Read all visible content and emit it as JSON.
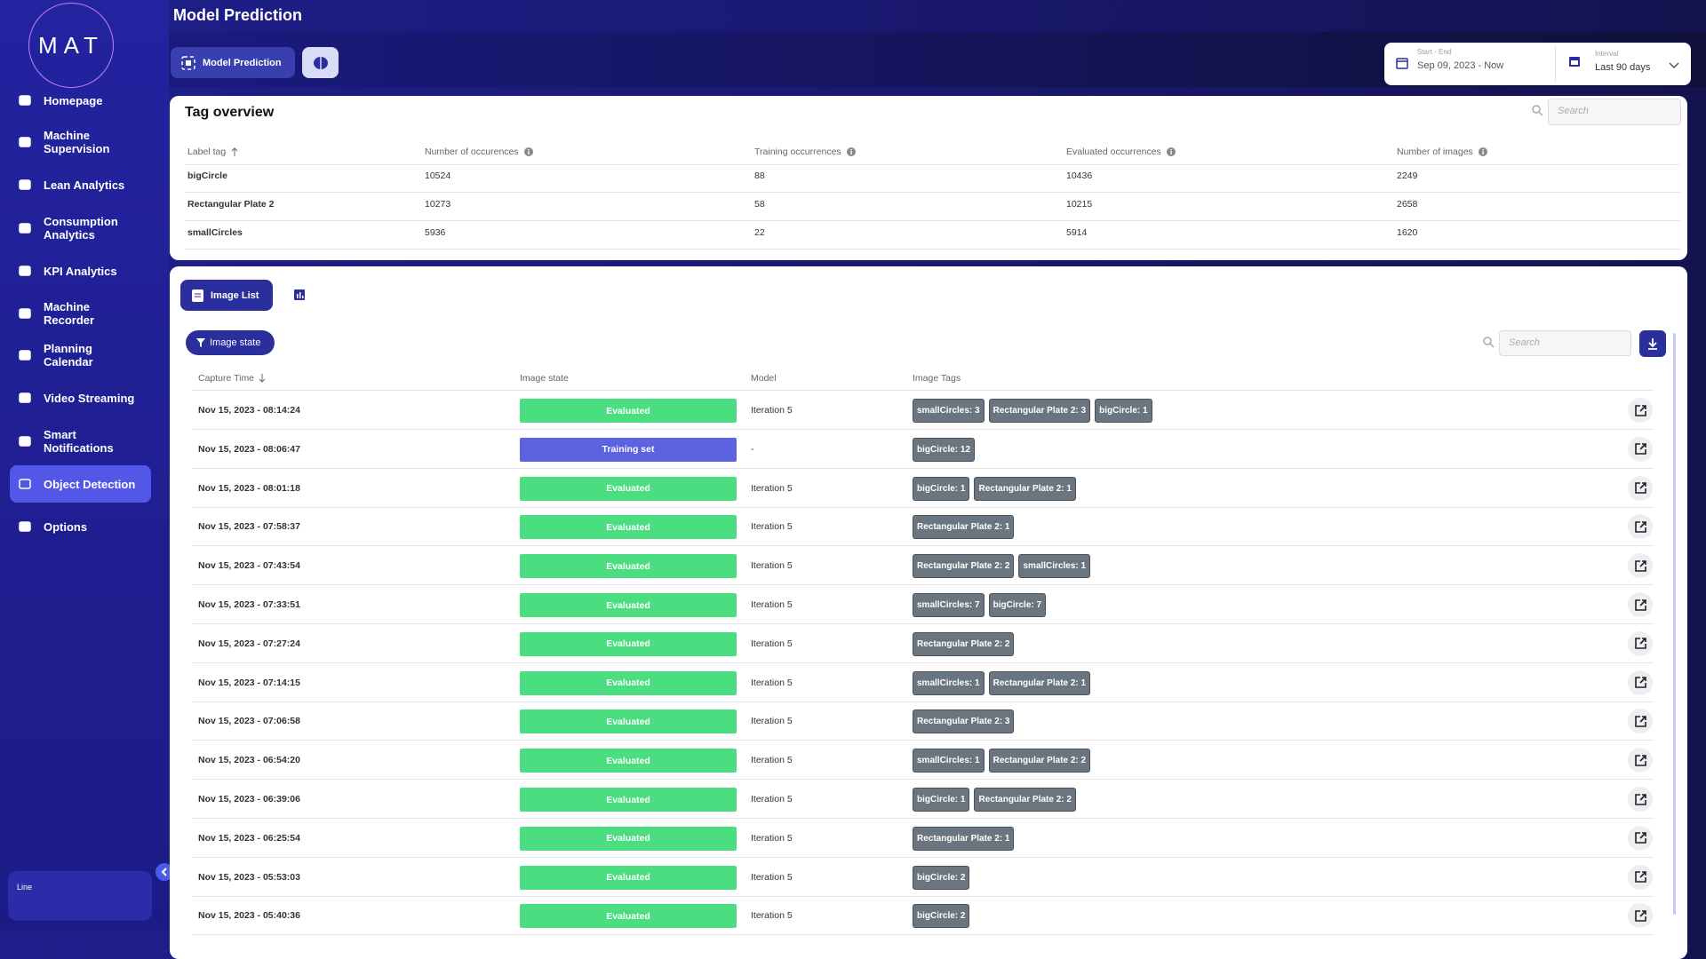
{
  "sidebar": {
    "logo": "MAT",
    "nav": [
      {
        "label": "Homepage"
      },
      {
        "label": "Machine Supervision"
      },
      {
        "label": "Lean Analytics"
      },
      {
        "label": "Consumption Analytics"
      },
      {
        "label": "KPI Analytics"
      },
      {
        "label": "Machine Recorder"
      },
      {
        "label": "Planning Calendar"
      },
      {
        "label": "Video Streaming"
      },
      {
        "label": "Smart Notifications"
      },
      {
        "label": "Object Detection",
        "active": true
      },
      {
        "label": "Options"
      }
    ],
    "footer": "Line"
  },
  "header": {
    "title": "Model Prediction",
    "tab": "Model Prediction",
    "date_range": {
      "label": "Start - End",
      "value": "Sep 09, 2023 - Now"
    },
    "interval": {
      "label": "Interval",
      "value": "Last 90 days"
    }
  },
  "tag_overview": {
    "title": "Tag overview",
    "search_placeholder": "Search",
    "columns": [
      "Label tag",
      "Number of occurences",
      "Training occurrences",
      "Evaluated occurrences",
      "Number of images"
    ],
    "rows": [
      [
        "bigCircle",
        10524,
        88,
        10436,
        2249
      ],
      [
        "Rectangular Plate 2",
        10273,
        58,
        10215,
        2658
      ],
      [
        "smallCircles",
        5936,
        22,
        5914,
        1620
      ]
    ]
  },
  "image_list": {
    "tab": "Image List",
    "filter": "Image state",
    "search_placeholder": "Search",
    "columns": [
      "Capture Time",
      "Image state",
      "Model",
      "Image Tags"
    ],
    "rows": [
      {
        "time": "Nov 15, 2023 - 08:14:24",
        "state": "Evaluated",
        "state_color": "#4ade80",
        "model": "Iteration 5",
        "tags": [
          "smallCircles: 3",
          "Rectangular Plate 2: 3",
          "bigCircle: 1"
        ]
      },
      {
        "time": "Nov 15, 2023 - 08:06:47",
        "state": "Training set",
        "state_color": "#5b63e0",
        "model": "-",
        "tags": [
          "bigCircle: 12"
        ]
      },
      {
        "time": "Nov 15, 2023 - 08:01:18",
        "state": "Evaluated",
        "state_color": "#4ade80",
        "model": "Iteration 5",
        "tags": [
          "bigCircle: 1",
          "Rectangular Plate 2: 1"
        ]
      },
      {
        "time": "Nov 15, 2023 - 07:58:37",
        "state": "Evaluated",
        "state_color": "#4ade80",
        "model": "Iteration 5",
        "tags": [
          "Rectangular Plate 2: 1"
        ]
      },
      {
        "time": "Nov 15, 2023 - 07:43:54",
        "state": "Evaluated",
        "state_color": "#4ade80",
        "model": "Iteration 5",
        "tags": [
          "Rectangular Plate 2: 2",
          "smallCircles: 1"
        ]
      },
      {
        "time": "Nov 15, 2023 - 07:33:51",
        "state": "Evaluated",
        "state_color": "#4ade80",
        "model": "Iteration 5",
        "tags": [
          "smallCircles: 7",
          "bigCircle: 7"
        ]
      },
      {
        "time": "Nov 15, 2023 - 07:27:24",
        "state": "Evaluated",
        "state_color": "#4ade80",
        "model": "Iteration 5",
        "tags": [
          "Rectangular Plate 2: 2"
        ]
      },
      {
        "time": "Nov 15, 2023 - 07:14:15",
        "state": "Evaluated",
        "state_color": "#4ade80",
        "model": "Iteration 5",
        "tags": [
          "smallCircles: 1",
          "Rectangular Plate 2: 1"
        ]
      },
      {
        "time": "Nov 15, 2023 - 07:06:58",
        "state": "Evaluated",
        "state_color": "#4ade80",
        "model": "Iteration 5",
        "tags": [
          "Rectangular Plate 2: 3"
        ]
      },
      {
        "time": "Nov 15, 2023 - 06:54:20",
        "state": "Evaluated",
        "state_color": "#4ade80",
        "model": "Iteration 5",
        "tags": [
          "smallCircles: 1",
          "Rectangular Plate 2: 2"
        ]
      },
      {
        "time": "Nov 15, 2023 - 06:39:06",
        "state": "Evaluated",
        "state_color": "#4ade80",
        "model": "Iteration 5",
        "tags": [
          "bigCircle: 1",
          "Rectangular Plate 2: 2"
        ]
      },
      {
        "time": "Nov 15, 2023 - 06:25:54",
        "state": "Evaluated",
        "state_color": "#4ade80",
        "model": "Iteration 5",
        "tags": [
          "Rectangular Plate 2: 1"
        ]
      },
      {
        "time": "Nov 15, 2023 - 05:53:03",
        "state": "Evaluated",
        "state_color": "#4ade80",
        "model": "Iteration 5",
        "tags": [
          "bigCircle: 2"
        ]
      },
      {
        "time": "Nov 15, 2023 - 05:40:36",
        "state": "Evaluated",
        "state_color": "#4ade80",
        "model": "Iteration 5",
        "tags": [
          "bigCircle: 2"
        ]
      }
    ]
  }
}
